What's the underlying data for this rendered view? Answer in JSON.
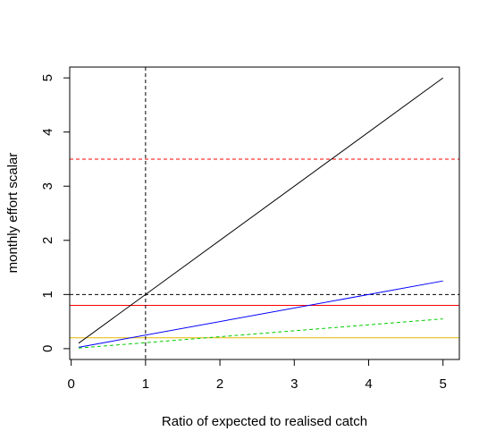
{
  "chart_data": {
    "type": "line",
    "title": "",
    "xlabel": "Ratio of expected to realised catch",
    "ylabel": "monthly effort scalar",
    "xlim": [
      -0.02,
      5.22
    ],
    "ylim": [
      -0.2,
      5.2
    ],
    "x_ticks": [
      "0",
      "1",
      "2",
      "3",
      "4",
      "5"
    ],
    "y_ticks": [
      "0",
      "1",
      "2",
      "3",
      "4",
      "5"
    ],
    "grid": false,
    "legend": "none",
    "series": [
      {
        "color": "#000000",
        "dash": "solid",
        "x": [
          0.1,
          5
        ],
        "y": [
          0.1,
          5
        ]
      },
      {
        "color": "#0000ff",
        "dash": "solid",
        "x": [
          0.1,
          5
        ],
        "y": [
          0.025,
          1.25
        ]
      },
      {
        "color": "#00cc00",
        "dash": "dashed",
        "x": [
          0.1,
          5
        ],
        "y": [
          0.011,
          0.55
        ]
      }
    ],
    "hlines": [
      {
        "y": 3.5,
        "color": "#ff0000",
        "dash": "dashed"
      },
      {
        "y": 1.0,
        "color": "#000000",
        "dash": "dashed"
      },
      {
        "y": 0.8,
        "color": "#ff0000",
        "dash": "solid"
      },
      {
        "y": 0.2,
        "color": "#e6b800",
        "dash": "solid"
      }
    ],
    "vlines": [
      {
        "x": 1.0,
        "color": "#000000",
        "dash": "dashed"
      }
    ]
  }
}
